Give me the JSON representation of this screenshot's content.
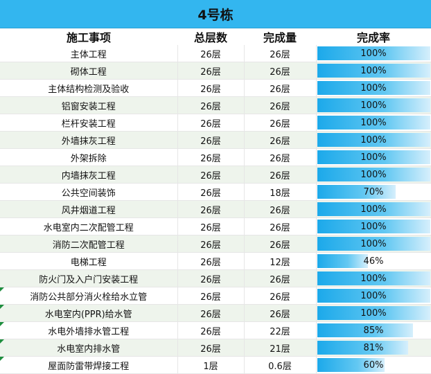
{
  "title": "4号栋",
  "columns": {
    "item": "施工事项",
    "total_floors": "总层数",
    "completed": "完成量",
    "rate": "完成率"
  },
  "colors": {
    "title_bg": "#33b6ef",
    "bar_start": "#1ca9ea",
    "bar_end": "#d6effc",
    "stripe": "#eef4ec"
  },
  "rows": [
    {
      "item": "主体工程",
      "total": "26层",
      "done": "26层",
      "rate": "100%",
      "fraction": 1.0
    },
    {
      "item": "砌体工程",
      "total": "26层",
      "done": "26层",
      "rate": "100%",
      "fraction": 1.0
    },
    {
      "item": "主体结构检测及验收",
      "total": "26层",
      "done": "26层",
      "rate": "100%",
      "fraction": 1.0
    },
    {
      "item": "铝窗安装工程",
      "total": "26层",
      "done": "26层",
      "rate": "100%",
      "fraction": 1.0
    },
    {
      "item": "栏杆安装工程",
      "total": "26层",
      "done": "26层",
      "rate": "100%",
      "fraction": 1.0
    },
    {
      "item": "外墙抹灰工程",
      "total": "26层",
      "done": "26层",
      "rate": "100%",
      "fraction": 1.0
    },
    {
      "item": "外架拆除",
      "total": "26层",
      "done": "26层",
      "rate": "100%",
      "fraction": 1.0
    },
    {
      "item": "内墙抹灰工程",
      "total": "26层",
      "done": "26层",
      "rate": "100%",
      "fraction": 1.0
    },
    {
      "item": "公共空间装饰",
      "total": "26层",
      "done": "18层",
      "rate": "70%",
      "fraction": 0.7
    },
    {
      "item": "风井烟道工程",
      "total": "26层",
      "done": "26层",
      "rate": "100%",
      "fraction": 1.0
    },
    {
      "item": "水电室内二次配管工程",
      "total": "26层",
      "done": "26层",
      "rate": "100%",
      "fraction": 1.0
    },
    {
      "item": "消防二次配管工程",
      "total": "26层",
      "done": "26层",
      "rate": "100%",
      "fraction": 1.0
    },
    {
      "item": "电梯工程",
      "total": "26层",
      "done": "12层",
      "rate": "46%",
      "fraction": 0.46
    },
    {
      "item": "防火门及入户门安装工程",
      "total": "26层",
      "done": "26层",
      "rate": "100%",
      "fraction": 1.0
    },
    {
      "item": "消防公共部分消火栓给水立管",
      "total": "26层",
      "done": "26层",
      "rate": "100%",
      "fraction": 1.0,
      "flag": true
    },
    {
      "item": "水电室内(PPR)给水管",
      "total": "26层",
      "done": "26层",
      "rate": "100%",
      "fraction": 1.0,
      "flag": true
    },
    {
      "item": "水电外墙排水管工程",
      "total": "26层",
      "done": "22层",
      "rate": "85%",
      "fraction": 0.85,
      "flag": true
    },
    {
      "item": "水电室内排水管",
      "total": "26层",
      "done": "21层",
      "rate": "81%",
      "fraction": 0.81,
      "flag": true
    },
    {
      "item": "屋面防雷带焊接工程",
      "total": "1层",
      "done": "0.6层",
      "rate": "60%",
      "fraction": 0.6,
      "flag": true
    }
  ]
}
